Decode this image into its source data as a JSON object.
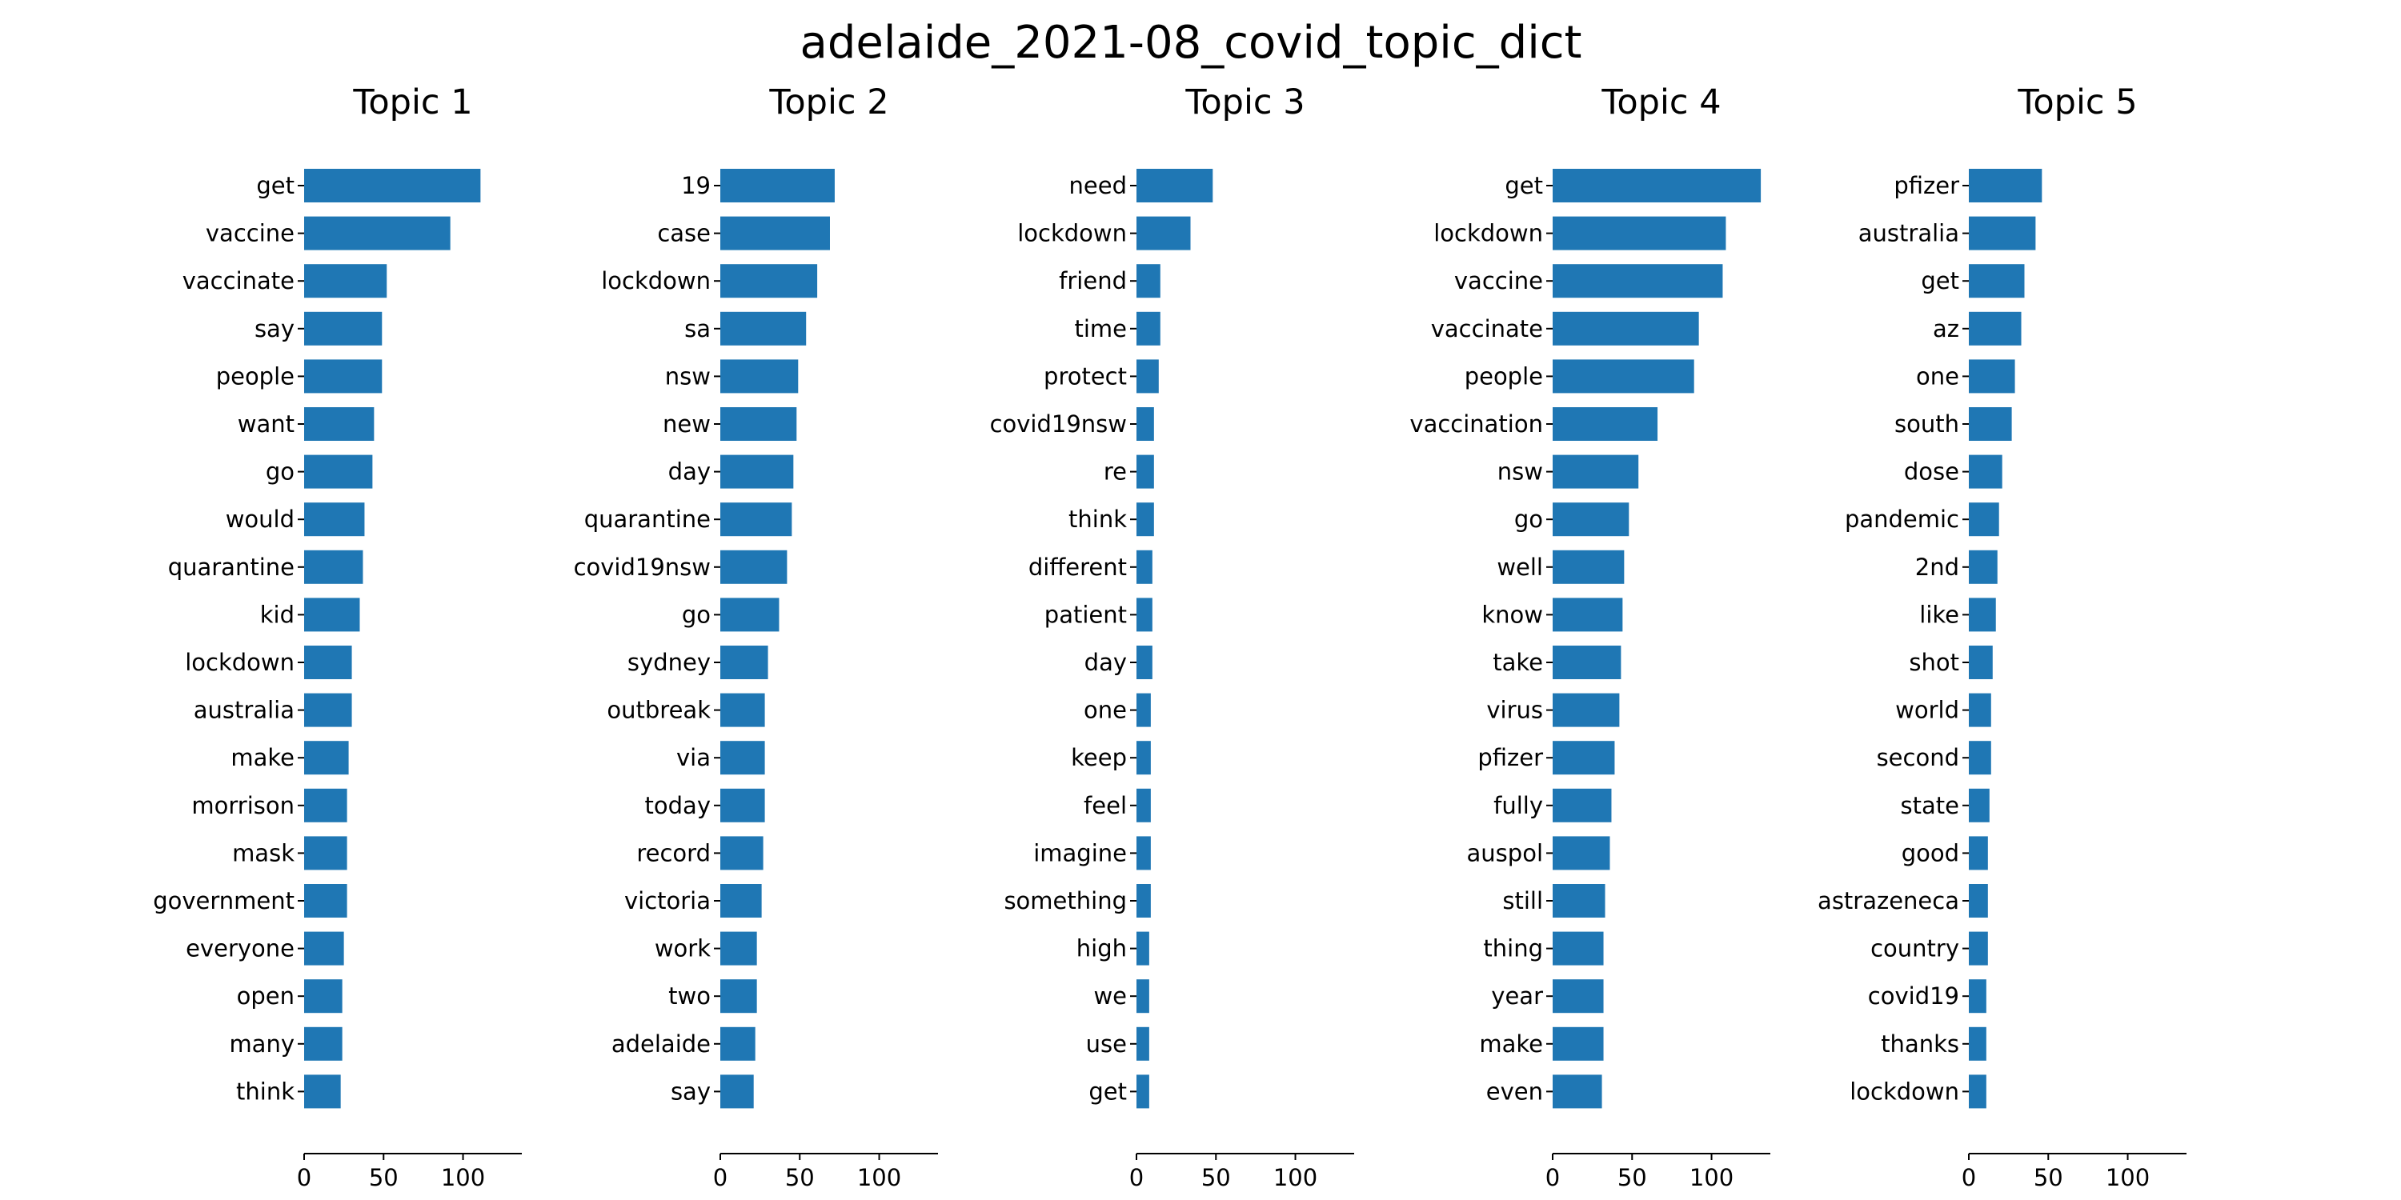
{
  "chart_data": {
    "type": "bar",
    "title": "adelaide_2021-08_covid_topic_dict",
    "orientation": "horizontal",
    "xlim": [
      0,
      137
    ],
    "xticks": [
      0,
      50,
      100
    ],
    "grid": false,
    "bar_color": "#1f77b4",
    "panels": [
      {
        "title": "Topic 1",
        "categories": [
          "get",
          "vaccine",
          "vaccinate",
          "say",
          "people",
          "want",
          "go",
          "would",
          "quarantine",
          "kid",
          "lockdown",
          "australia",
          "make",
          "morrison",
          "mask",
          "government",
          "everyone",
          "open",
          "many",
          "think"
        ],
        "values": [
          111,
          92,
          52,
          49,
          49,
          44,
          43,
          38,
          37,
          35,
          30,
          30,
          28,
          27,
          27,
          27,
          25,
          24,
          24,
          23
        ]
      },
      {
        "title": "Topic 2",
        "categories": [
          "19",
          "case",
          "lockdown",
          "sa",
          "nsw",
          "new",
          "day",
          "quarantine",
          "covid19nsw",
          "go",
          "sydney",
          "outbreak",
          "via",
          "today",
          "record",
          "victoria",
          "work",
          "two",
          "adelaide",
          "say"
        ],
        "values": [
          72,
          69,
          61,
          54,
          49,
          48,
          46,
          45,
          42,
          37,
          30,
          28,
          28,
          28,
          27,
          26,
          23,
          23,
          22,
          21
        ]
      },
      {
        "title": "Topic 3",
        "categories": [
          "need",
          "lockdown",
          "friend",
          "time",
          "protect",
          "covid19nsw",
          "re",
          "think",
          "different",
          "patient",
          "day",
          "one",
          "keep",
          "feel",
          "imagine",
          "something",
          "high",
          "we",
          "use",
          "get"
        ],
        "values": [
          48,
          34,
          15,
          15,
          14,
          11,
          11,
          11,
          10,
          10,
          10,
          9,
          9,
          9,
          9,
          9,
          8,
          8,
          8,
          8
        ]
      },
      {
        "title": "Topic 4",
        "categories": [
          "get",
          "lockdown",
          "vaccine",
          "vaccinate",
          "people",
          "vaccination",
          "nsw",
          "go",
          "well",
          "know",
          "take",
          "virus",
          "pfizer",
          "fully",
          "auspol",
          "still",
          "thing",
          "year",
          "make",
          "even"
        ],
        "values": [
          131,
          109,
          107,
          92,
          89,
          66,
          54,
          48,
          45,
          44,
          43,
          42,
          39,
          37,
          36,
          33,
          32,
          32,
          32,
          31
        ]
      },
      {
        "title": "Topic 5",
        "categories": [
          "pfizer",
          "australia",
          "get",
          "az",
          "one",
          "south",
          "dose",
          "pandemic",
          "2nd",
          "like",
          "shot",
          "world",
          "second",
          "state",
          "good",
          "astrazeneca",
          "country",
          "covid19",
          "thanks",
          "lockdown"
        ],
        "values": [
          46,
          42,
          35,
          33,
          29,
          27,
          21,
          19,
          18,
          17,
          15,
          14,
          14,
          13,
          12,
          12,
          12,
          11,
          11,
          11
        ]
      }
    ]
  }
}
